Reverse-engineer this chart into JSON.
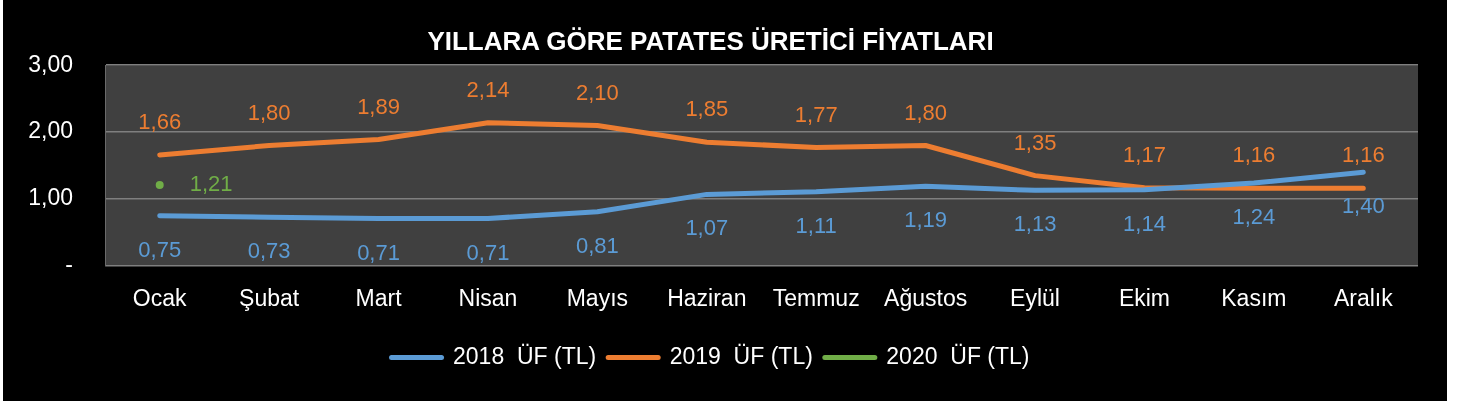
{
  "chart_data": {
    "type": "line",
    "title": "YILLARA GÖRE PATATES ÜRETİCİ FİYATLARI",
    "categories": [
      "Ocak",
      "Şubat",
      "Mart",
      "Nisan",
      "Mayıs",
      "Haziran",
      "Temmuz",
      "Ağustos",
      "Eylül",
      "Ekim",
      "Kasım",
      "Aralık"
    ],
    "series": [
      {
        "name": "2018  ÜF (TL)",
        "color": "#5b9bd5",
        "values": [
          0.75,
          0.73,
          0.71,
          0.71,
          0.81,
          1.07,
          1.11,
          1.19,
          1.13,
          1.14,
          1.24,
          1.4
        ],
        "value_labels": [
          "0,75",
          "0,73",
          "0,71",
          "0,71",
          "0,81",
          "1,07",
          "1,11",
          "1,19",
          "1,13",
          "1,14",
          "1,24",
          "1,40"
        ]
      },
      {
        "name": "2019  ÜF (TL)",
        "color": "#ed7d31",
        "values": [
          1.66,
          1.8,
          1.89,
          2.14,
          2.1,
          1.85,
          1.77,
          1.8,
          1.35,
          1.17,
          1.16,
          1.16
        ],
        "value_labels": [
          "1,66",
          "1,80",
          "1,89",
          "2,14",
          "2,10",
          "1,85",
          "1,77",
          "1,80",
          "1,35",
          "1,17",
          "1,16",
          "1,16"
        ]
      },
      {
        "name": "2020  ÜF (TL)",
        "color": "#70ad47",
        "marker": "circle",
        "values": [
          1.21,
          null,
          null,
          null,
          null,
          null,
          null,
          null,
          null,
          null,
          null,
          null
        ],
        "value_labels": [
          "1,21",
          null,
          null,
          null,
          null,
          null,
          null,
          null,
          null,
          null,
          null,
          null
        ]
      }
    ],
    "ylim": [
      0,
      3
    ],
    "yticks": [
      {
        "value": 0,
        "label": "-"
      },
      {
        "value": 1,
        "label": "1,00"
      },
      {
        "value": 2,
        "label": "2,00"
      },
      {
        "value": 3,
        "label": "3,00"
      }
    ],
    "grid": "y",
    "legend": "bottom",
    "line_style": "solid"
  }
}
